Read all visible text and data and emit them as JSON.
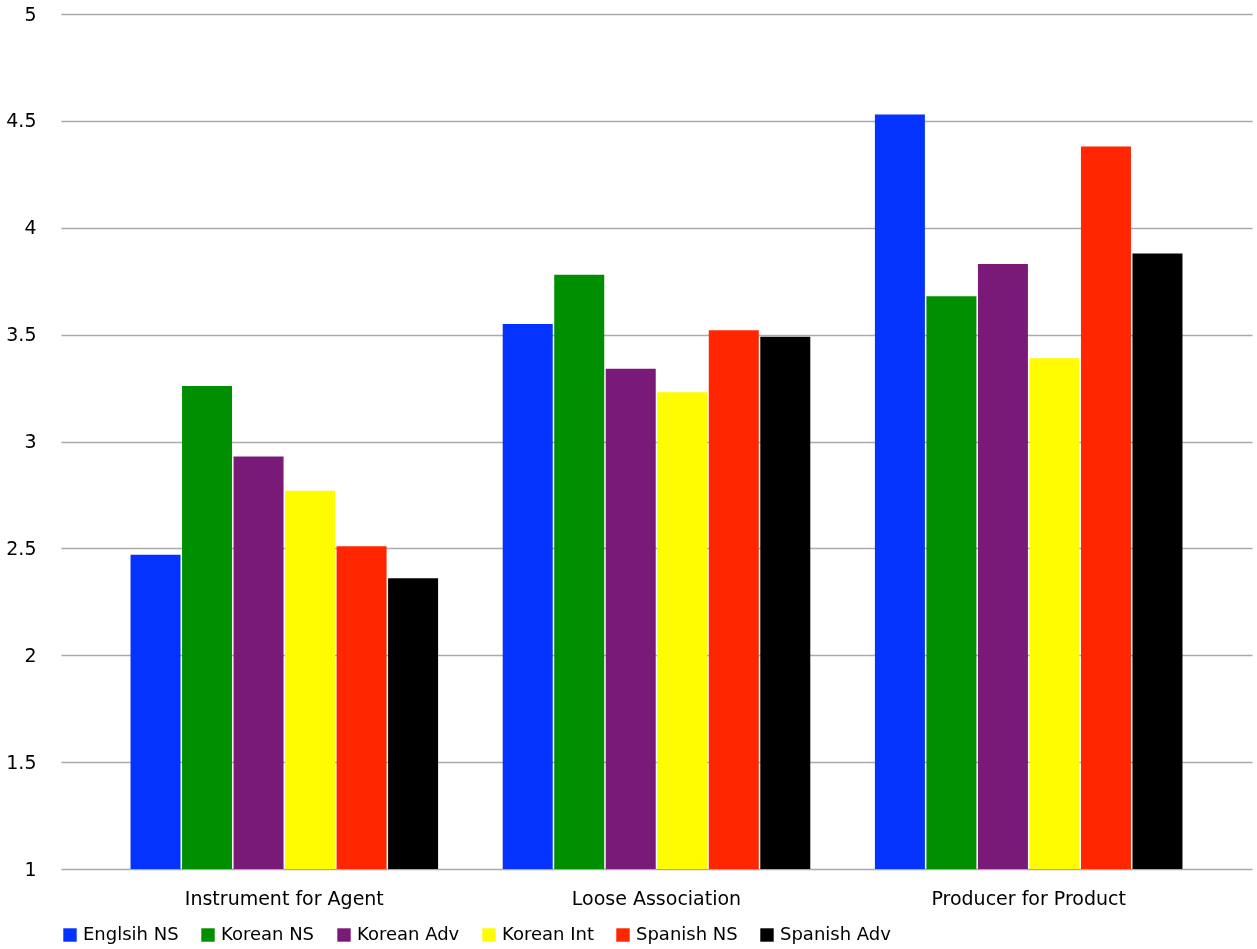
{
  "chart_data": {
    "type": "bar",
    "categories": [
      "Instrument for Agent",
      "Loose Association",
      "Producer for Product"
    ],
    "series": [
      {
        "name": "Englsih NS",
        "color": "#0433ff",
        "values": [
          2.47,
          3.55,
          4.53
        ]
      },
      {
        "name": "Korean NS",
        "color": "#008f00",
        "values": [
          3.26,
          3.78,
          3.68
        ]
      },
      {
        "name": "Korean Adv",
        "color": "#7a1a78",
        "values": [
          2.93,
          3.34,
          3.83
        ]
      },
      {
        "name": "Korean Int",
        "color": "#fffb00",
        "values": [
          2.77,
          3.23,
          3.39
        ]
      },
      {
        "name": "Spanish NS",
        "color": "#ff2600",
        "values": [
          2.51,
          3.52,
          4.38
        ]
      },
      {
        "name": "Spanish Adv",
        "color": "#000000",
        "values": [
          2.36,
          3.49,
          3.88
        ]
      }
    ],
    "ylim": [
      1,
      5
    ],
    "yticks": [
      1,
      1.5,
      2,
      2.5,
      3,
      3.5,
      4,
      4.5,
      5
    ],
    "grid": "y",
    "legend": "bottom"
  }
}
